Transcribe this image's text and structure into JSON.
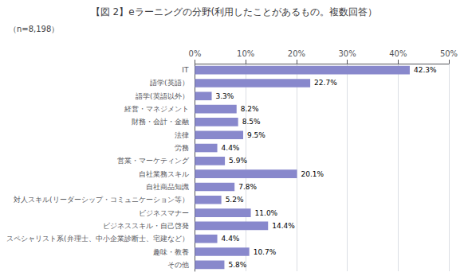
{
  "chart_data": {
    "type": "bar",
    "orientation": "horizontal",
    "title": "【図 2】eラーニングの分野(利用したことがあるもの。複数回答）",
    "annotations": [
      "（n=8,198）"
    ],
    "categories": [
      "IT",
      "語学(英語）",
      "語学(英語以外）",
      "経営・マネジメント",
      "財務・会計・金融",
      "法律",
      "労務",
      "営業・マーケティング",
      "自社業務スキル",
      "自社商品知識",
      "対人スキル(リーダーシップ・コミュニケーション等）",
      "ビジネスマナー",
      "ビジネススキル・自己啓発",
      "スペシャリスト系(弁理士、中小企業診断士、宅建など）",
      "趣味・教養",
      "その他"
    ],
    "values": [
      42.3,
      22.7,
      3.3,
      8.2,
      8.5,
      9.5,
      4.4,
      5.9,
      20.1,
      7.8,
      5.2,
      11.0,
      14.4,
      4.4,
      10.7,
      5.8
    ],
    "value_labels": [
      "42.3%",
      "22.7%",
      "3.3%",
      "8.2%",
      "8.5%",
      "9.5%",
      "4.4%",
      "5.9%",
      "20.1%",
      "7.8%",
      "5.2%",
      "11.0%",
      "14.4%",
      "4.4%",
      "10.7%",
      "5.8%"
    ],
    "data_labels": true,
    "color": "#8888cc",
    "xlim": [
      0,
      50
    ],
    "xticks": [
      {
        "value": 0,
        "label": "0%"
      },
      {
        "value": 10,
        "label": "10%"
      },
      {
        "value": 20,
        "label": "20%"
      },
      {
        "value": 30,
        "label": "30%"
      },
      {
        "value": 40,
        "label": "40%"
      },
      {
        "value": 50,
        "label": "50%"
      }
    ],
    "grid": true
  }
}
